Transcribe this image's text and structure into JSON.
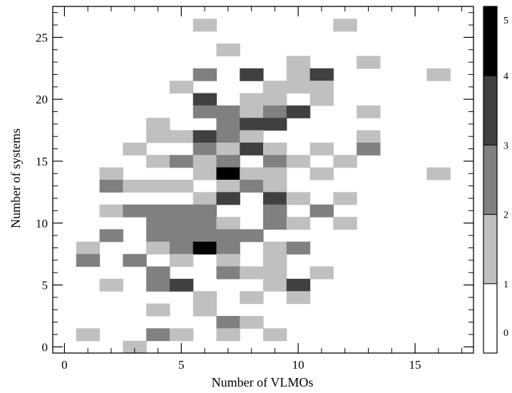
{
  "chart_data": {
    "type": "heatmap",
    "title": "",
    "xlabel": "Number of VLMOs",
    "ylabel": "Number of systems",
    "xlim": [
      -0.5,
      17.5
    ],
    "ylim": [
      -0.5,
      27.5
    ],
    "xticks": [
      0,
      5,
      10,
      15
    ],
    "yticks": [
      0,
      5,
      10,
      15,
      20,
      25
    ],
    "bin_size": [
      1,
      1
    ],
    "colorbar": {
      "ticks": [
        0,
        1,
        2,
        3,
        4,
        5
      ],
      "colors": [
        "#ffffff",
        "#c0c0c0",
        "#808080",
        "#404040",
        "#000000"
      ]
    },
    "cells": [
      {
        "x": 6,
        "y": 26,
        "count": 1
      },
      {
        "x": 12,
        "y": 26,
        "count": 1
      },
      {
        "x": 7,
        "y": 24,
        "count": 1
      },
      {
        "x": 10,
        "y": 23,
        "count": 1
      },
      {
        "x": 13,
        "y": 23,
        "count": 1
      },
      {
        "x": 6,
        "y": 22,
        "count": 2
      },
      {
        "x": 8,
        "y": 22,
        "count": 3
      },
      {
        "x": 10,
        "y": 22,
        "count": 1
      },
      {
        "x": 11,
        "y": 22,
        "count": 3
      },
      {
        "x": 16,
        "y": 22,
        "count": 1
      },
      {
        "x": 5,
        "y": 21,
        "count": 1
      },
      {
        "x": 9,
        "y": 21,
        "count": 1
      },
      {
        "x": 10,
        "y": 21,
        "count": 1
      },
      {
        "x": 11,
        "y": 21,
        "count": 1
      },
      {
        "x": 6,
        "y": 20,
        "count": 3
      },
      {
        "x": 8,
        "y": 20,
        "count": 1
      },
      {
        "x": 9,
        "y": 20,
        "count": 1
      },
      {
        "x": 11,
        "y": 20,
        "count": 1
      },
      {
        "x": 6,
        "y": 19,
        "count": 2
      },
      {
        "x": 7,
        "y": 19,
        "count": 2
      },
      {
        "x": 8,
        "y": 19,
        "count": 1
      },
      {
        "x": 9,
        "y": 19,
        "count": 2
      },
      {
        "x": 10,
        "y": 19,
        "count": 3
      },
      {
        "x": 13,
        "y": 19,
        "count": 1
      },
      {
        "x": 4,
        "y": 18,
        "count": 1
      },
      {
        "x": 7,
        "y": 18,
        "count": 2
      },
      {
        "x": 8,
        "y": 18,
        "count": 3
      },
      {
        "x": 9,
        "y": 18,
        "count": 3
      },
      {
        "x": 4,
        "y": 17,
        "count": 1
      },
      {
        "x": 5,
        "y": 17,
        "count": 1
      },
      {
        "x": 6,
        "y": 17,
        "count": 3
      },
      {
        "x": 7,
        "y": 17,
        "count": 2
      },
      {
        "x": 8,
        "y": 17,
        "count": 1
      },
      {
        "x": 13,
        "y": 17,
        "count": 1
      },
      {
        "x": 3,
        "y": 16,
        "count": 1
      },
      {
        "x": 6,
        "y": 16,
        "count": 2
      },
      {
        "x": 7,
        "y": 16,
        "count": 1
      },
      {
        "x": 8,
        "y": 16,
        "count": 3
      },
      {
        "x": 9,
        "y": 16,
        "count": 1
      },
      {
        "x": 11,
        "y": 16,
        "count": 1
      },
      {
        "x": 13,
        "y": 16,
        "count": 2
      },
      {
        "x": 4,
        "y": 15,
        "count": 1
      },
      {
        "x": 5,
        "y": 15,
        "count": 2
      },
      {
        "x": 6,
        "y": 15,
        "count": 1
      },
      {
        "x": 7,
        "y": 15,
        "count": 2
      },
      {
        "x": 9,
        "y": 15,
        "count": 2
      },
      {
        "x": 10,
        "y": 15,
        "count": 1
      },
      {
        "x": 12,
        "y": 15,
        "count": 1
      },
      {
        "x": 2,
        "y": 14,
        "count": 1
      },
      {
        "x": 6,
        "y": 14,
        "count": 1
      },
      {
        "x": 7,
        "y": 14,
        "count": 5
      },
      {
        "x": 8,
        "y": 14,
        "count": 1
      },
      {
        "x": 9,
        "y": 14,
        "count": 1
      },
      {
        "x": 11,
        "y": 14,
        "count": 1
      },
      {
        "x": 16,
        "y": 14,
        "count": 1
      },
      {
        "x": 2,
        "y": 13,
        "count": 2
      },
      {
        "x": 3,
        "y": 13,
        "count": 1
      },
      {
        "x": 4,
        "y": 13,
        "count": 1
      },
      {
        "x": 5,
        "y": 13,
        "count": 1
      },
      {
        "x": 7,
        "y": 13,
        "count": 1
      },
      {
        "x": 8,
        "y": 13,
        "count": 2
      },
      {
        "x": 9,
        "y": 13,
        "count": 1
      },
      {
        "x": 6,
        "y": 12,
        "count": 1
      },
      {
        "x": 7,
        "y": 12,
        "count": 3
      },
      {
        "x": 9,
        "y": 12,
        "count": 3
      },
      {
        "x": 10,
        "y": 12,
        "count": 1
      },
      {
        "x": 12,
        "y": 12,
        "count": 1
      },
      {
        "x": 2,
        "y": 11,
        "count": 1
      },
      {
        "x": 3,
        "y": 11,
        "count": 2
      },
      {
        "x": 4,
        "y": 11,
        "count": 2
      },
      {
        "x": 5,
        "y": 11,
        "count": 2
      },
      {
        "x": 6,
        "y": 11,
        "count": 2
      },
      {
        "x": 9,
        "y": 11,
        "count": 2
      },
      {
        "x": 11,
        "y": 11,
        "count": 2
      },
      {
        "x": 4,
        "y": 10,
        "count": 2
      },
      {
        "x": 5,
        "y": 10,
        "count": 2
      },
      {
        "x": 6,
        "y": 10,
        "count": 2
      },
      {
        "x": 7,
        "y": 10,
        "count": 1
      },
      {
        "x": 9,
        "y": 10,
        "count": 2
      },
      {
        "x": 10,
        "y": 10,
        "count": 1
      },
      {
        "x": 12,
        "y": 10,
        "count": 1
      },
      {
        "x": 2,
        "y": 9,
        "count": 2
      },
      {
        "x": 4,
        "y": 9,
        "count": 2
      },
      {
        "x": 5,
        "y": 9,
        "count": 2
      },
      {
        "x": 6,
        "y": 9,
        "count": 2
      },
      {
        "x": 7,
        "y": 9,
        "count": 2
      },
      {
        "x": 8,
        "y": 9,
        "count": 2
      },
      {
        "x": 1,
        "y": 8,
        "count": 1
      },
      {
        "x": 4,
        "y": 8,
        "count": 1
      },
      {
        "x": 5,
        "y": 8,
        "count": 2
      },
      {
        "x": 6,
        "y": 8,
        "count": 5
      },
      {
        "x": 7,
        "y": 8,
        "count": 2
      },
      {
        "x": 9,
        "y": 8,
        "count": 1
      },
      {
        "x": 10,
        "y": 8,
        "count": 2
      },
      {
        "x": 1,
        "y": 7,
        "count": 2
      },
      {
        "x": 3,
        "y": 7,
        "count": 2
      },
      {
        "x": 5,
        "y": 7,
        "count": 1
      },
      {
        "x": 7,
        "y": 7,
        "count": 1
      },
      {
        "x": 9,
        "y": 7,
        "count": 1
      },
      {
        "x": 4,
        "y": 6,
        "count": 2
      },
      {
        "x": 7,
        "y": 6,
        "count": 2
      },
      {
        "x": 8,
        "y": 6,
        "count": 1
      },
      {
        "x": 9,
        "y": 6,
        "count": 1
      },
      {
        "x": 11,
        "y": 6,
        "count": 1
      },
      {
        "x": 2,
        "y": 5,
        "count": 1
      },
      {
        "x": 4,
        "y": 5,
        "count": 2
      },
      {
        "x": 5,
        "y": 5,
        "count": 3
      },
      {
        "x": 9,
        "y": 5,
        "count": 1
      },
      {
        "x": 10,
        "y": 5,
        "count": 3
      },
      {
        "x": 6,
        "y": 4,
        "count": 1
      },
      {
        "x": 8,
        "y": 4,
        "count": 1
      },
      {
        "x": 10,
        "y": 4,
        "count": 1
      },
      {
        "x": 4,
        "y": 3,
        "count": 1
      },
      {
        "x": 6,
        "y": 3,
        "count": 1
      },
      {
        "x": 7,
        "y": 2,
        "count": 2
      },
      {
        "x": 8,
        "y": 2,
        "count": 1
      },
      {
        "x": 1,
        "y": 1,
        "count": 1
      },
      {
        "x": 4,
        "y": 1,
        "count": 2
      },
      {
        "x": 5,
        "y": 1,
        "count": 1
      },
      {
        "x": 7,
        "y": 1,
        "count": 1
      },
      {
        "x": 9,
        "y": 1,
        "count": 1
      },
      {
        "x": 3,
        "y": 0,
        "count": 1
      }
    ]
  }
}
